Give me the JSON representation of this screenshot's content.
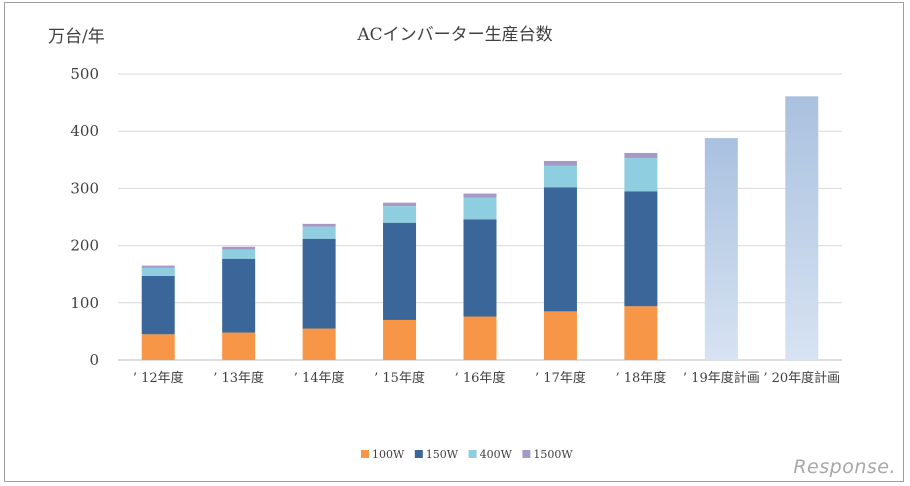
{
  "chart_data": {
    "type": "bar",
    "stacked": true,
    "title": "ACインバーター生産台数",
    "ylabel": "万台/年",
    "xlabel": "",
    "ylim": [
      0,
      500
    ],
    "yticks": [
      0,
      100,
      200,
      300,
      400,
      500
    ],
    "grid": true,
    "legend_position": "bottom",
    "categories": [
      "’ 12年度",
      "’ 13年度",
      "’ 14年度",
      "’ 15年度",
      "’ 16年度",
      "’ 17年度",
      "’ 18年度",
      "’ 19年度計画",
      "’ 20年度計画"
    ],
    "series": [
      {
        "name": "100W",
        "color": "#f79646",
        "values": [
          45,
          48,
          55,
          70,
          76,
          85,
          94,
          null,
          null
        ]
      },
      {
        "name": "150W",
        "color": "#3a6699",
        "values": [
          102,
          129,
          157,
          170,
          170,
          217,
          201,
          null,
          null
        ]
      },
      {
        "name": "400W",
        "color": "#8fcde0",
        "values": [
          14,
          16,
          21,
          29,
          38,
          38,
          58,
          null,
          null
        ]
      },
      {
        "name": "1500W",
        "color": "#a799c6",
        "values": [
          4,
          5,
          5,
          6,
          7,
          8,
          9,
          null,
          null
        ]
      }
    ],
    "plan": {
      "values": [
        null,
        null,
        null,
        null,
        null,
        null,
        null,
        388,
        461
      ],
      "color_top": "#a9c1df",
      "color_bottom": "#d7e3f2"
    }
  },
  "watermark": "Response."
}
